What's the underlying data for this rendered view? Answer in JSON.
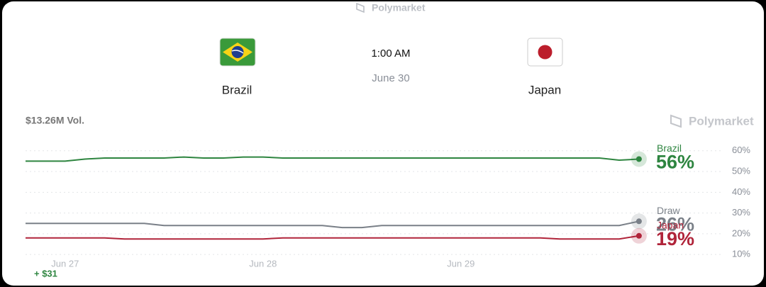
{
  "brand": "Polymarket",
  "match": {
    "home": "Brazil",
    "away": "Japan",
    "time": "1:00 AM",
    "date": "June 30"
  },
  "volume": "$13.26M Vol.",
  "watermark": "Polymarket",
  "footer": "+ $31",
  "chart_data": {
    "type": "line",
    "categories": [
      null,
      null,
      "Jun 27",
      null,
      null,
      null,
      null,
      null,
      null,
      null,
      null,
      null,
      "Jun 28",
      null,
      null,
      null,
      null,
      null,
      null,
      null,
      null,
      null,
      "Jun 29",
      null,
      null,
      null,
      null,
      null,
      null,
      null,
      null,
      null
    ],
    "series": [
      {
        "name": "Brazil",
        "color": "#2e8540",
        "values": [
          55,
          55,
          55,
          56,
          56.5,
          56.5,
          56.5,
          56.5,
          57,
          56.5,
          56.5,
          57,
          57,
          56.5,
          56.5,
          56.5,
          56.5,
          56.5,
          56.5,
          56.5,
          56.5,
          56.5,
          56.5,
          56.5,
          56.5,
          56.5,
          56.5,
          56.5,
          56.5,
          56.5,
          55.5,
          56
        ],
        "value_labels": [
          null,
          null,
          null,
          null,
          null,
          null,
          null,
          null,
          null,
          null,
          null,
          null,
          null,
          null,
          null,
          null,
          null,
          null,
          null,
          null,
          null,
          null,
          null,
          null,
          null,
          null,
          null,
          null,
          null,
          null,
          null,
          "56%"
        ]
      },
      {
        "name": "Draw",
        "color": "#7a8088",
        "values": [
          25,
          25,
          25,
          25,
          25,
          25,
          25,
          24,
          24,
          24,
          24,
          24,
          24,
          24,
          24,
          24,
          23,
          23,
          24,
          24,
          24,
          24,
          24,
          24,
          24,
          24,
          24,
          24,
          24,
          24,
          24,
          26
        ],
        "value_labels": [
          null,
          null,
          null,
          null,
          null,
          null,
          null,
          null,
          null,
          null,
          null,
          null,
          null,
          null,
          null,
          null,
          null,
          null,
          null,
          null,
          null,
          null,
          null,
          null,
          null,
          null,
          null,
          null,
          null,
          null,
          null,
          "26%"
        ]
      },
      {
        "name": "Japan",
        "color": "#b0243a",
        "values": [
          18,
          18,
          18,
          18,
          18,
          17.5,
          17.5,
          17.5,
          17.5,
          17.5,
          17.5,
          17.5,
          17.5,
          18,
          18,
          18,
          18,
          18,
          18,
          18,
          18,
          18,
          18,
          18,
          18,
          18,
          18,
          17.5,
          17.5,
          17.5,
          17.5,
          19
        ],
        "value_labels": [
          null,
          null,
          null,
          null,
          null,
          null,
          null,
          null,
          null,
          null,
          null,
          null,
          null,
          null,
          null,
          null,
          null,
          null,
          null,
          null,
          null,
          null,
          null,
          null,
          null,
          null,
          null,
          null,
          null,
          null,
          null,
          "19%"
        ]
      }
    ],
    "ylim": [
      8,
      63
    ],
    "yticks": [
      {
        "value": 10,
        "label": "10%"
      },
      {
        "value": 20,
        "label": "20%"
      },
      {
        "value": 30,
        "label": "30%"
      },
      {
        "value": 40,
        "label": "40%"
      },
      {
        "value": 50,
        "label": "50%"
      },
      {
        "value": 60,
        "label": "60%"
      }
    ],
    "grid": true
  }
}
